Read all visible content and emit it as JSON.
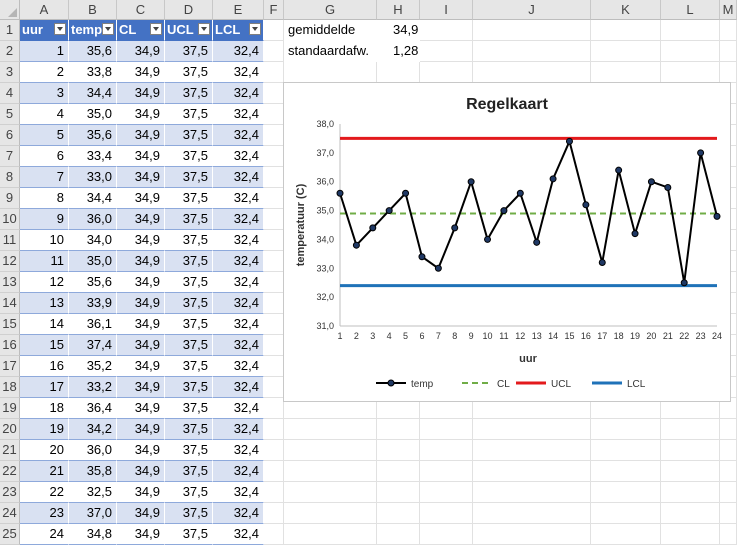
{
  "columns": [
    "A",
    "B",
    "C",
    "D",
    "E",
    "F",
    "G",
    "H",
    "I",
    "J",
    "K",
    "L",
    "M"
  ],
  "row_numbers": [
    "1",
    "2",
    "3",
    "4",
    "5",
    "6",
    "7",
    "8",
    "9",
    "10",
    "11",
    "12",
    "13",
    "14",
    "15",
    "16",
    "17",
    "18",
    "19",
    "20",
    "21",
    "22",
    "23",
    "24",
    "25"
  ],
  "table": {
    "headers": [
      "uur",
      "temp",
      "CL",
      "UCL",
      "LCL"
    ],
    "rows": [
      [
        "1",
        "35,6",
        "34,9",
        "37,5",
        "32,4"
      ],
      [
        "2",
        "33,8",
        "34,9",
        "37,5",
        "32,4"
      ],
      [
        "3",
        "34,4",
        "34,9",
        "37,5",
        "32,4"
      ],
      [
        "4",
        "35,0",
        "34,9",
        "37,5",
        "32,4"
      ],
      [
        "5",
        "35,6",
        "34,9",
        "37,5",
        "32,4"
      ],
      [
        "6",
        "33,4",
        "34,9",
        "37,5",
        "32,4"
      ],
      [
        "7",
        "33,0",
        "34,9",
        "37,5",
        "32,4"
      ],
      [
        "8",
        "34,4",
        "34,9",
        "37,5",
        "32,4"
      ],
      [
        "9",
        "36,0",
        "34,9",
        "37,5",
        "32,4"
      ],
      [
        "10",
        "34,0",
        "34,9",
        "37,5",
        "32,4"
      ],
      [
        "11",
        "35,0",
        "34,9",
        "37,5",
        "32,4"
      ],
      [
        "12",
        "35,6",
        "34,9",
        "37,5",
        "32,4"
      ],
      [
        "13",
        "33,9",
        "34,9",
        "37,5",
        "32,4"
      ],
      [
        "14",
        "36,1",
        "34,9",
        "37,5",
        "32,4"
      ],
      [
        "15",
        "37,4",
        "34,9",
        "37,5",
        "32,4"
      ],
      [
        "16",
        "35,2",
        "34,9",
        "37,5",
        "32,4"
      ],
      [
        "17",
        "33,2",
        "34,9",
        "37,5",
        "32,4"
      ],
      [
        "18",
        "36,4",
        "34,9",
        "37,5",
        "32,4"
      ],
      [
        "19",
        "34,2",
        "34,9",
        "37,5",
        "32,4"
      ],
      [
        "20",
        "36,0",
        "34,9",
        "37,5",
        "32,4"
      ],
      [
        "21",
        "35,8",
        "34,9",
        "37,5",
        "32,4"
      ],
      [
        "22",
        "32,5",
        "34,9",
        "37,5",
        "32,4"
      ],
      [
        "23",
        "37,0",
        "34,9",
        "37,5",
        "32,4"
      ],
      [
        "24",
        "34,8",
        "34,9",
        "37,5",
        "32,4"
      ]
    ]
  },
  "stats": {
    "mean_label": "gemiddelde",
    "mean_value": "34,9",
    "sd_label": "standaardafw.",
    "sd_value": "1,28"
  },
  "chart_data": {
    "type": "line",
    "title": "Regelkaart",
    "xlabel": "uur",
    "ylabel": "temperatuur (C)",
    "ylim": [
      31.0,
      38.0
    ],
    "y_ticks": [
      "31,0",
      "32,0",
      "33,0",
      "34,0",
      "35,0",
      "36,0",
      "37,0",
      "38,0"
    ],
    "y_tick_values": [
      31,
      32,
      33,
      34,
      35,
      36,
      37,
      38
    ],
    "x": [
      1,
      2,
      3,
      4,
      5,
      6,
      7,
      8,
      9,
      10,
      11,
      12,
      13,
      14,
      15,
      16,
      17,
      18,
      19,
      20,
      21,
      22,
      23,
      24
    ],
    "legend_position": "bottom",
    "series": [
      {
        "name": "temp",
        "color": "#000000",
        "style": "solid-markers",
        "values": [
          35.6,
          33.8,
          34.4,
          35.0,
          35.6,
          33.4,
          33.0,
          34.4,
          36.0,
          34.0,
          35.0,
          35.6,
          33.9,
          36.1,
          37.4,
          35.2,
          33.2,
          36.4,
          34.2,
          36.0,
          35.8,
          32.5,
          37.0,
          34.8
        ]
      },
      {
        "name": "CL",
        "color": "#70ad47",
        "style": "dashed",
        "values": [
          34.9,
          34.9,
          34.9,
          34.9,
          34.9,
          34.9,
          34.9,
          34.9,
          34.9,
          34.9,
          34.9,
          34.9,
          34.9,
          34.9,
          34.9,
          34.9,
          34.9,
          34.9,
          34.9,
          34.9,
          34.9,
          34.9,
          34.9,
          34.9
        ]
      },
      {
        "name": "UCL",
        "color": "#e31a1c",
        "style": "solid",
        "values": [
          37.5,
          37.5,
          37.5,
          37.5,
          37.5,
          37.5,
          37.5,
          37.5,
          37.5,
          37.5,
          37.5,
          37.5,
          37.5,
          37.5,
          37.5,
          37.5,
          37.5,
          37.5,
          37.5,
          37.5,
          37.5,
          37.5,
          37.5,
          37.5
        ]
      },
      {
        "name": "LCL",
        "color": "#1f72b8",
        "style": "solid",
        "values": [
          32.4,
          32.4,
          32.4,
          32.4,
          32.4,
          32.4,
          32.4,
          32.4,
          32.4,
          32.4,
          32.4,
          32.4,
          32.4,
          32.4,
          32.4,
          32.4,
          32.4,
          32.4,
          32.4,
          32.4,
          32.4,
          32.4,
          32.4,
          32.4
        ]
      }
    ]
  }
}
